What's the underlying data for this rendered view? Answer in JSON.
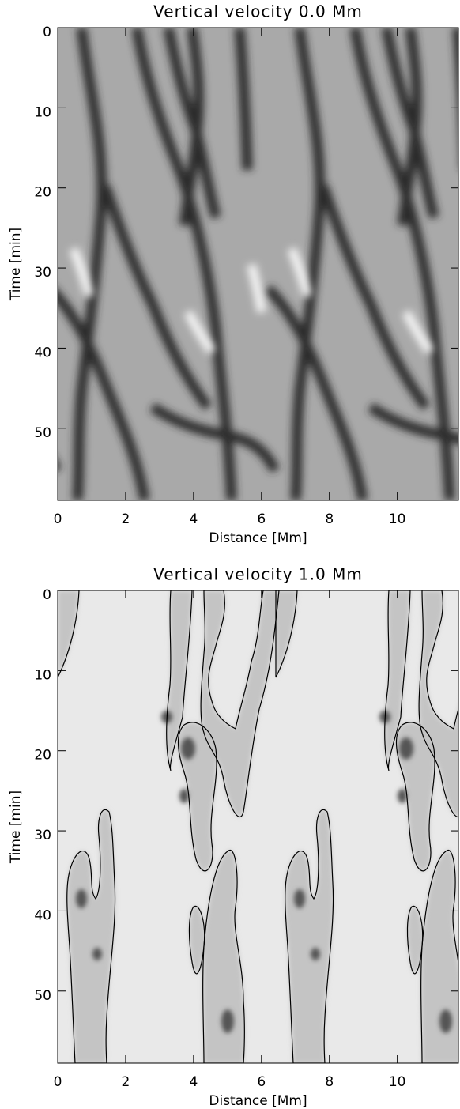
{
  "chart_data": [
    {
      "type": "heatmap",
      "title": "Vertical velocity 0.0 Mm",
      "x_label": "Distance [Mm]",
      "y_label": "Time [min]",
      "xlim": [
        0,
        11.8
      ],
      "xticks": [
        0,
        2,
        4,
        6,
        8,
        10
      ],
      "ylim": [
        59,
        0
      ],
      "yticks": [
        0,
        10,
        20,
        30,
        40,
        50
      ]
    },
    {
      "type": "heatmap",
      "title": "Vertical velocity 1.0 Mm",
      "x_label": "Distance [Mm]",
      "y_label": "Time [min]",
      "xlim": [
        0,
        11.8
      ],
      "xticks": [
        0,
        2,
        4,
        6,
        8,
        10
      ],
      "ylim": [
        59,
        0
      ],
      "yticks": [
        0,
        10,
        20,
        30,
        40,
        50
      ]
    }
  ]
}
